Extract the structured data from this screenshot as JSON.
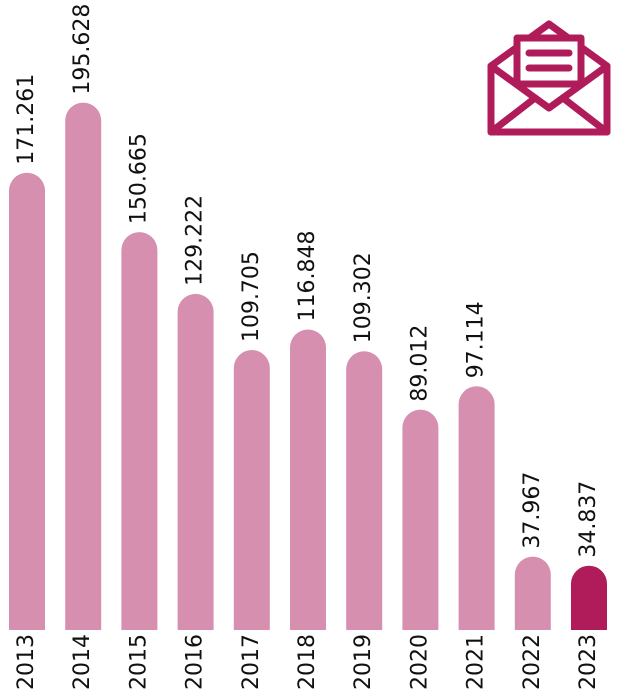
{
  "chart_data": {
    "type": "bar",
    "categories": [
      "2013",
      "2014",
      "2015",
      "2016",
      "2017",
      "2018",
      "2019",
      "2020",
      "2021",
      "2022",
      "2023"
    ],
    "values": [
      171261,
      195628,
      150665,
      129222,
      109705,
      116848,
      109302,
      89012,
      97114,
      37967,
      34837
    ],
    "value_labels": [
      "171.261",
      "195.628",
      "150.665",
      "129.222",
      "109.705",
      "116.848",
      "109.302",
      "89.012",
      "97.114",
      "37.967",
      "34.837"
    ],
    "colors": [
      "#d68faf",
      "#d68faf",
      "#d68faf",
      "#d68faf",
      "#d68faf",
      "#d68faf",
      "#d68faf",
      "#d68faf",
      "#d68faf",
      "#d68faf",
      "#b01c5a"
    ],
    "ylim": [
      12500,
      231250
    ]
  }
}
